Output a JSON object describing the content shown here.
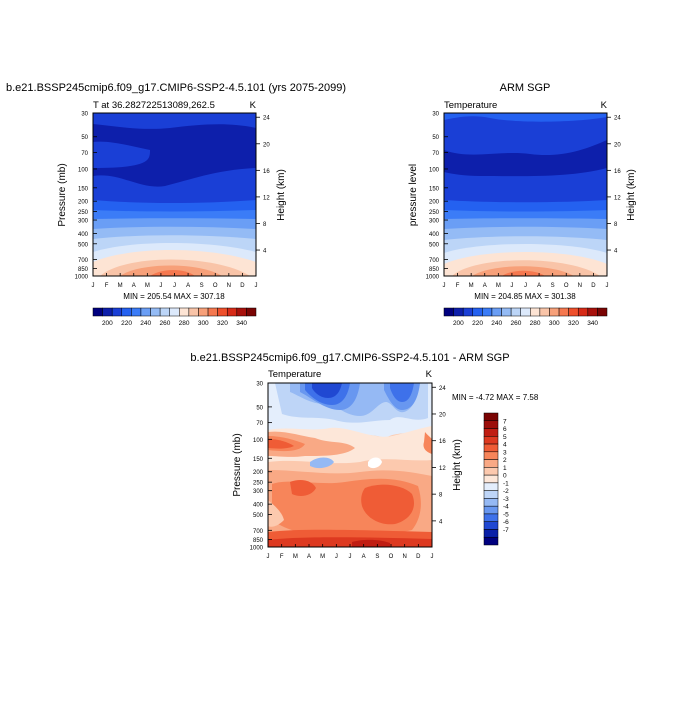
{
  "months": [
    "J",
    "F",
    "M",
    "A",
    "M",
    "J",
    "J",
    "A",
    "S",
    "O",
    "N",
    "D",
    "J"
  ],
  "pressure_ticks": [
    "30",
    "50",
    "70",
    "100",
    "150",
    "200",
    "250",
    "300",
    "400",
    "500",
    "700",
    "850",
    "1000"
  ],
  "pressure_values": [
    30,
    50,
    70,
    100,
    150,
    200,
    250,
    300,
    400,
    500,
    700,
    850,
    1000
  ],
  "height_ticks_top": [
    "24",
    "20",
    "16",
    "12",
    "8",
    "4"
  ],
  "height_ticks_bottom": [
    "24",
    "20",
    "16",
    "12",
    "8",
    "4"
  ],
  "chart_data": [
    {
      "type": "heatmap",
      "id": "model",
      "title": "b.e21.BSSP245cmip6.f09_g17.CMIP6-SSP2-4.5.101 (yrs 2075-2099)",
      "left_label": "T at 36.282722513089,262.5",
      "right_label": "K",
      "ylabel": "Pressure (mb)",
      "ylabel_right": "Height (km)",
      "xlabel": "",
      "stats": "MIN = 205.54 MAX = 307.18",
      "min": 205.54,
      "max": 307.18,
      "colorbar_labels": [
        "200",
        "220",
        "240",
        "260",
        "280",
        "300",
        "320",
        "340"
      ],
      "colorbar_levels": [
        190,
        200,
        210,
        220,
        230,
        240,
        250,
        260,
        270,
        280,
        290,
        300,
        310,
        320,
        330,
        340,
        350
      ],
      "colors": [
        "#00007f",
        "#0d1fab",
        "#1a3fd6",
        "#2461f0",
        "#3b7cf7",
        "#6a9ef5",
        "#94bbf5",
        "#bcd5f7",
        "#dce9fb",
        "#fde4d4",
        "#f9c4a8",
        "#f7a079",
        "#f5784f",
        "#ee4f2b",
        "#d72a17",
        "#a8100b",
        "#7a0403"
      ]
    },
    {
      "type": "heatmap",
      "id": "obs",
      "title": "ARM SGP",
      "left_label": "Temperature",
      "right_label": "K",
      "ylabel": "pressure level",
      "ylabel_right": "Height (km)",
      "xlabel": "",
      "stats": "MIN = 204.85 MAX = 301.38",
      "min": 204.85,
      "max": 301.38,
      "colorbar_labels": [
        "200",
        "220",
        "240",
        "260",
        "280",
        "300",
        "320",
        "340"
      ],
      "colorbar_levels": [
        190,
        200,
        210,
        220,
        230,
        240,
        250,
        260,
        270,
        280,
        290,
        300,
        310,
        320,
        330,
        340,
        350
      ]
    },
    {
      "type": "heatmap",
      "id": "diff",
      "title": "b.e21.BSSP245cmip6.f09_g17.CMIP6-SSP2-4.5.101 - ARM SGP",
      "left_label": "Temperature",
      "right_label": "K",
      "ylabel": "Pressure (mb)",
      "ylabel_right": "Height (km)",
      "stats_label": "MIN =  -4.72 MAX =   7.58",
      "min": -4.72,
      "max": 7.58,
      "colorbar_labels": [
        "7",
        "6",
        "5",
        "4",
        "3",
        "2",
        "1",
        "0",
        "-1",
        "-2",
        "-3",
        "-4",
        "-5",
        "-6",
        "-7"
      ],
      "colors": [
        "#7a0403",
        "#9c0e0a",
        "#c01d12",
        "#dd3920",
        "#ef5c36",
        "#f7855a",
        "#f9a985",
        "#fcc9ae",
        "#fde7d9",
        "#e4eefc",
        "#bed5f7",
        "#95b9f4",
        "#6897f0",
        "#3e71ea",
        "#2048d2",
        "#0a20a8",
        "#00007f"
      ]
    }
  ]
}
